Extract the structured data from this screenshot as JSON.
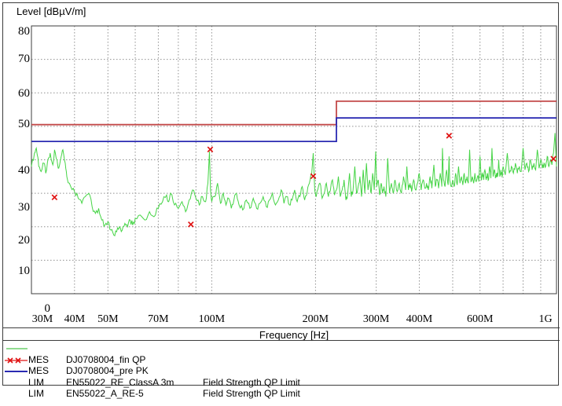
{
  "title": "Level [dBµV/m]",
  "xaxis_title": "Frequency [Hz]",
  "colors": {
    "trace_green": "#46d446",
    "legend_green": "#90dc90",
    "marker_red": "#e01212",
    "limit_red": "#c34a4a",
    "limit_blue": "#2a2ab2",
    "grid_gray": "#909090",
    "frame_dark": "#3c3c3c"
  },
  "chart_data": {
    "type": "line",
    "title": "Level [dBµV/m]",
    "xlabel": "Frequency [Hz]",
    "ylabel": "Level [dBµV/m]",
    "x_scale": "log",
    "xlim_mhz": [
      30,
      1000
    ],
    "ylim": [
      0,
      80
    ],
    "grid": true,
    "y_ticks": [
      80,
      70,
      60,
      50,
      40,
      30,
      20,
      10,
      0
    ],
    "x_ticks": [
      {
        "mhz": 30,
        "label": "30M"
      },
      {
        "mhz": 40,
        "label": "40M"
      },
      {
        "mhz": 50,
        "label": "50M"
      },
      {
        "mhz": 70,
        "label": "70M"
      },
      {
        "mhz": 100,
        "label": "100M"
      },
      {
        "mhz": 200,
        "label": "200M"
      },
      {
        "mhz": 300,
        "label": "300M"
      },
      {
        "mhz": 400,
        "label": "400M"
      },
      {
        "mhz": 600,
        "label": "600M"
      },
      {
        "mhz": 1000,
        "label": "1G"
      }
    ],
    "x_gridlines_mhz": [
      40,
      50,
      60,
      70,
      80,
      90,
      100,
      200,
      300,
      400,
      500,
      600,
      700,
      800,
      900,
      1000
    ],
    "series": [
      {
        "name": "MES DJ0708004_pre PK",
        "kind": "trace",
        "color": "#46d446",
        "noise_db": 0.9,
        "points_mhz_db": [
          [
            30,
            38
          ],
          [
            30.6,
            42
          ],
          [
            31,
            43.5
          ],
          [
            31.5,
            38
          ],
          [
            32,
            36.5
          ],
          [
            32.6,
            39
          ],
          [
            33,
            36
          ],
          [
            33.6,
            40.5
          ],
          [
            34,
            42
          ],
          [
            34.6,
            38.5
          ],
          [
            35,
            43
          ],
          [
            35.6,
            40
          ],
          [
            36,
            37.5
          ],
          [
            36.6,
            41
          ],
          [
            37,
            43
          ],
          [
            37.6,
            39
          ],
          [
            38,
            35
          ],
          [
            39,
            32
          ],
          [
            40,
            30.5
          ],
          [
            41,
            28.5
          ],
          [
            42,
            27
          ],
          [
            43,
            29
          ],
          [
            44,
            30
          ],
          [
            45,
            26
          ],
          [
            46,
            24
          ],
          [
            47,
            25.5
          ],
          [
            48,
            22
          ],
          [
            49,
            20.5
          ],
          [
            50,
            21.5
          ],
          [
            51,
            19
          ],
          [
            52,
            17.5
          ],
          [
            53,
            18.5
          ],
          [
            54,
            20
          ],
          [
            55,
            19
          ],
          [
            56,
            21
          ],
          [
            57,
            20
          ],
          [
            58,
            22
          ],
          [
            59,
            20.5
          ],
          [
            60,
            22.5
          ],
          [
            62,
            23.5
          ],
          [
            64,
            22
          ],
          [
            66,
            24.5
          ],
          [
            68,
            23
          ],
          [
            70,
            25.5
          ],
          [
            72,
            27.5
          ],
          [
            74,
            29.5
          ],
          [
            75,
            27.5
          ],
          [
            76,
            30
          ],
          [
            78,
            26.5
          ],
          [
            80,
            25.5
          ],
          [
            82,
            27.5
          ],
          [
            84,
            24.5
          ],
          [
            86,
            28
          ],
          [
            88,
            31
          ],
          [
            90,
            28.5
          ],
          [
            92,
            26.5
          ],
          [
            94,
            29
          ],
          [
            96,
            27.5
          ],
          [
            97.5,
            33
          ],
          [
            98.5,
            42.5
          ],
          [
            99.2,
            31
          ],
          [
            100,
            27.5
          ],
          [
            102,
            29
          ],
          [
            104,
            33
          ],
          [
            106,
            27
          ],
          [
            108,
            30
          ],
          [
            110,
            26.5
          ],
          [
            112,
            28.5
          ],
          [
            114,
            25.5
          ],
          [
            116,
            28
          ],
          [
            118,
            30
          ],
          [
            120,
            26.5
          ],
          [
            123,
            25
          ],
          [
            126,
            28
          ],
          [
            129,
            25.5
          ],
          [
            132,
            28.5
          ],
          [
            135,
            25.5
          ],
          [
            138,
            27
          ],
          [
            141,
            29
          ],
          [
            144,
            26
          ],
          [
            147,
            28
          ],
          [
            150,
            30
          ],
          [
            153,
            26.5
          ],
          [
            156,
            28
          ],
          [
            159,
            31
          ],
          [
            162,
            27
          ],
          [
            165,
            29
          ],
          [
            168,
            26.5
          ],
          [
            171,
            28
          ],
          [
            174,
            31
          ],
          [
            177,
            27.5
          ],
          [
            180,
            29
          ],
          [
            183,
            32
          ],
          [
            186,
            28
          ],
          [
            189,
            30
          ],
          [
            192,
            33
          ],
          [
            195,
            36
          ],
          [
            197,
            42
          ],
          [
            199,
            31
          ],
          [
            201,
            29
          ],
          [
            203,
            31
          ],
          [
            206,
            33
          ],
          [
            209,
            28.5
          ],
          [
            212,
            30
          ],
          [
            215,
            33
          ],
          [
            218,
            29
          ],
          [
            221,
            31
          ],
          [
            224,
            34
          ],
          [
            227,
            29.5
          ],
          [
            230,
            31
          ],
          [
            233,
            35
          ],
          [
            236,
            29
          ],
          [
            239,
            31
          ],
          [
            242,
            34
          ],
          [
            245,
            28
          ],
          [
            248,
            30
          ],
          [
            251,
            36
          ],
          [
            254,
            29
          ],
          [
            257,
            31
          ],
          [
            260,
            38
          ],
          [
            263,
            30
          ],
          [
            266,
            32
          ],
          [
            269,
            35
          ],
          [
            272,
            29
          ],
          [
            275,
            37
          ],
          [
            278,
            30
          ],
          [
            281,
            39
          ],
          [
            284,
            31
          ],
          [
            287,
            34
          ],
          [
            290,
            30
          ],
          [
            293,
            36
          ],
          [
            296,
            31
          ],
          [
            299,
            42.5
          ],
          [
            301,
            32
          ],
          [
            304,
            34
          ],
          [
            307,
            29.5
          ],
          [
            310,
            33
          ],
          [
            313,
            30
          ],
          [
            316,
            32
          ],
          [
            320,
            29
          ],
          [
            324,
            40.5
          ],
          [
            328,
            30
          ],
          [
            332,
            33
          ],
          [
            336,
            30
          ],
          [
            340,
            34
          ],
          [
            345,
            30.5
          ],
          [
            350,
            33
          ],
          [
            355,
            30
          ],
          [
            360,
            35
          ],
          [
            365,
            31
          ],
          [
            368,
            38
          ],
          [
            372,
            31
          ],
          [
            376,
            33
          ],
          [
            380,
            30.5
          ],
          [
            385,
            34
          ],
          [
            390,
            31
          ],
          [
            395,
            33
          ],
          [
            400,
            36
          ],
          [
            405,
            31
          ],
          [
            410,
            34
          ],
          [
            415,
            31.5
          ],
          [
            420,
            33
          ],
          [
            425,
            31
          ],
          [
            430,
            35
          ],
          [
            435,
            31.5
          ],
          [
            441,
            38.5
          ],
          [
            445,
            32
          ],
          [
            450,
            34
          ],
          [
            455,
            31.5
          ],
          [
            460,
            36
          ],
          [
            465,
            32
          ],
          [
            467,
            43.5
          ],
          [
            470,
            34
          ],
          [
            475,
            32
          ],
          [
            480,
            37
          ],
          [
            485,
            32.5
          ],
          [
            488,
            41
          ],
          [
            490,
            34
          ],
          [
            495,
            32
          ],
          [
            500,
            34
          ],
          [
            505,
            32
          ],
          [
            510,
            36
          ],
          [
            515,
            32.5
          ],
          [
            520,
            38
          ],
          [
            525,
            33
          ],
          [
            530,
            35
          ],
          [
            535,
            32.5
          ],
          [
            540,
            36
          ],
          [
            545,
            33
          ],
          [
            550,
            35
          ],
          [
            555,
            33
          ],
          [
            560,
            43
          ],
          [
            565,
            33.5
          ],
          [
            570,
            35
          ],
          [
            575,
            33
          ],
          [
            580,
            36
          ],
          [
            585,
            33.5
          ],
          [
            590,
            35
          ],
          [
            595,
            33.5
          ],
          [
            600,
            41
          ],
          [
            605,
            34
          ],
          [
            610,
            36
          ],
          [
            615,
            34
          ],
          [
            620,
            37
          ],
          [
            625,
            34
          ],
          [
            630,
            36
          ],
          [
            635,
            34
          ],
          [
            640,
            38
          ],
          [
            645,
            34.5
          ],
          [
            650,
            43.5
          ],
          [
            655,
            35
          ],
          [
            660,
            37
          ],
          [
            665,
            34.5
          ],
          [
            670,
            36
          ],
          [
            675,
            35
          ],
          [
            680,
            40
          ],
          [
            685,
            35
          ],
          [
            690,
            37
          ],
          [
            695,
            35
          ],
          [
            700,
            38
          ],
          [
            710,
            35.5
          ],
          [
            720,
            42
          ],
          [
            730,
            36
          ],
          [
            740,
            38
          ],
          [
            750,
            36
          ],
          [
            760,
            39
          ],
          [
            770,
            36
          ],
          [
            780,
            38
          ],
          [
            790,
            36.5
          ],
          [
            800,
            43.5
          ],
          [
            810,
            37
          ],
          [
            820,
            39
          ],
          [
            830,
            36.5
          ],
          [
            840,
            40
          ],
          [
            850,
            37
          ],
          [
            860,
            39
          ],
          [
            870,
            37
          ],
          [
            880,
            43
          ],
          [
            890,
            37.5
          ],
          [
            900,
            40
          ],
          [
            910,
            37.5
          ],
          [
            920,
            39
          ],
          [
            930,
            38
          ],
          [
            940,
            41
          ],
          [
            950,
            38
          ],
          [
            960,
            40
          ],
          [
            970,
            38.5
          ],
          [
            980,
            42
          ],
          [
            990,
            48
          ],
          [
            1000,
            38
          ]
        ]
      },
      {
        "name": "MES DJ0708004_fin QP",
        "kind": "points",
        "marker": "x",
        "color": "#e01212",
        "points_mhz_db": [
          [
            35,
            28.8
          ],
          [
            87,
            20.7
          ],
          [
            99,
            43.1
          ],
          [
            197,
            35.1
          ],
          [
            488,
            47.2
          ],
          [
            980,
            40.3
          ]
        ]
      },
      {
        "name": "LIM EN55022_RE_ClassA 3m Field Strength QP Limit",
        "kind": "limit",
        "color": "#c34a4a",
        "points_mhz_db": [
          [
            30,
            50.5
          ],
          [
            230,
            50.5
          ],
          [
            230,
            57.5
          ],
          [
            1000,
            57.5
          ]
        ]
      },
      {
        "name": "LIM EN55022_A_RE-5 Field Strength QP Limit",
        "kind": "limit",
        "color": "#2a2ab2",
        "points_mhz_db": [
          [
            30,
            45.5
          ],
          [
            230,
            45.5
          ],
          [
            230,
            52.5
          ],
          [
            1000,
            52.5
          ]
        ]
      }
    ]
  },
  "legend": {
    "rows": [
      {
        "swatch": "green-line",
        "c1": "",
        "c2": "",
        "c3": ""
      },
      {
        "swatch": "red-x-line",
        "c1": "MES",
        "c2": "DJ0708004_fin QP",
        "c3": ""
      },
      {
        "swatch": "blue-line",
        "c1": "MES",
        "c2": "DJ0708004_pre PK",
        "c3": ""
      },
      {
        "swatch": "none",
        "c1": "LIM",
        "c2": "EN55022_RE_ClassA 3m",
        "c3": "Field Strength QP Limit"
      },
      {
        "swatch": "none",
        "c1": "LIM",
        "c2": "EN55022_A_RE-5",
        "c3": "Field Strength QP Limit"
      }
    ]
  }
}
